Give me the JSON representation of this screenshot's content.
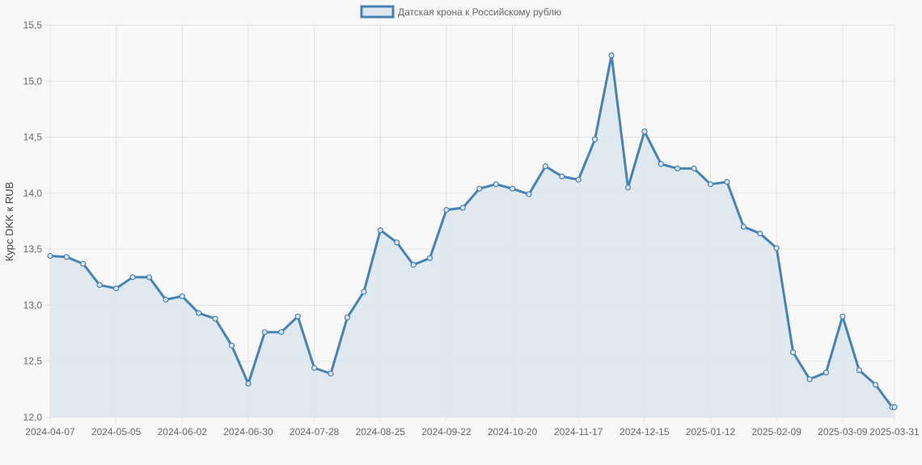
{
  "chart_data": {
    "type": "area",
    "title": "",
    "xlabel": "",
    "ylabel": "Курс DKK к RUB",
    "ylim": [
      12.0,
      15.5
    ],
    "y_ticks": [
      "12,0",
      "12,5",
      "13,0",
      "13,5",
      "14,0",
      "14,5",
      "15,0",
      "15,5"
    ],
    "x_tick_labels": [
      "2024-04-07",
      "2024-05-05",
      "2024-06-02",
      "2024-06-30",
      "2024-07-28",
      "2024-08-25",
      "2024-09-22",
      "2024-10-20",
      "2024-11-17",
      "2024-12-15",
      "2025-01-12",
      "2025-02-09",
      "2025-03-09",
      "2025-03-31"
    ],
    "legend_position": "top",
    "grid": true,
    "colors": {
      "line": "#4682b4",
      "fill": "#dde6ee",
      "grid": "#e1e1e1",
      "background": "#f8f8f8"
    },
    "series": [
      {
        "name": "Датская крона к Российскому рублю",
        "x": [
          "2024-04-07",
          "2024-04-14",
          "2024-04-21",
          "2024-04-28",
          "2024-05-05",
          "2024-05-12",
          "2024-05-19",
          "2024-05-26",
          "2024-06-02",
          "2024-06-09",
          "2024-06-16",
          "2024-06-23",
          "2024-06-30",
          "2024-07-07",
          "2024-07-14",
          "2024-07-21",
          "2024-07-28",
          "2024-08-04",
          "2024-08-11",
          "2024-08-18",
          "2024-08-25",
          "2024-09-01",
          "2024-09-08",
          "2024-09-15",
          "2024-09-22",
          "2024-09-29",
          "2024-10-06",
          "2024-10-13",
          "2024-10-20",
          "2024-10-27",
          "2024-11-03",
          "2024-11-10",
          "2024-11-17",
          "2024-11-24",
          "2024-12-01",
          "2024-12-08",
          "2024-12-15",
          "2024-12-22",
          "2024-12-29",
          "2025-01-05",
          "2025-01-12",
          "2025-01-19",
          "2025-01-26",
          "2025-02-02",
          "2025-02-09",
          "2025-02-16",
          "2025-02-23",
          "2025-03-02",
          "2025-03-09",
          "2025-03-16",
          "2025-03-23",
          "2025-03-30",
          "2025-03-31"
        ],
        "values": [
          13.44,
          13.43,
          13.37,
          13.18,
          13.15,
          13.25,
          13.25,
          13.05,
          13.08,
          12.93,
          12.88,
          12.64,
          12.3,
          12.76,
          12.76,
          12.9,
          12.44,
          12.39,
          12.89,
          13.12,
          13.67,
          13.56,
          13.36,
          13.42,
          13.85,
          13.87,
          14.04,
          14.08,
          14.04,
          13.99,
          14.24,
          14.15,
          14.12,
          14.48,
          15.23,
          14.05,
          14.55,
          14.26,
          14.22,
          14.22,
          14.08,
          14.1,
          13.7,
          13.64,
          13.51,
          12.58,
          12.34,
          12.4,
          12.9,
          12.42,
          12.29,
          12.09,
          12.09
        ]
      }
    ]
  }
}
